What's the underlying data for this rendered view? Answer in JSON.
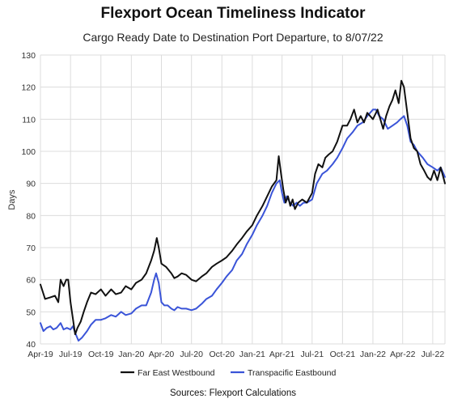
{
  "chart_data": {
    "type": "line",
    "title": "Flexport Ocean Timeliness Indicator",
    "subtitle": "Cargo Ready Date to Destination Port Departure, to 8/07/22",
    "ylabel": "Days",
    "xlabel": "",
    "source": "Sources: Flexport Calculations",
    "ylim": [
      40,
      130
    ],
    "yticks": [
      40,
      50,
      60,
      70,
      80,
      90,
      100,
      110,
      120,
      130
    ],
    "xlim": [
      "2019-04-01",
      "2022-08-07"
    ],
    "xticks": [
      {
        "date": "2019-04-01",
        "label": "Apr-19"
      },
      {
        "date": "2019-07-01",
        "label": "Jul-19"
      },
      {
        "date": "2019-10-01",
        "label": "Oct-19"
      },
      {
        "date": "2020-01-01",
        "label": "Jan-20"
      },
      {
        "date": "2020-04-01",
        "label": "Apr-20"
      },
      {
        "date": "2020-07-01",
        "label": "Jul-20"
      },
      {
        "date": "2020-10-01",
        "label": "Oct-20"
      },
      {
        "date": "2021-01-01",
        "label": "Jan-21"
      },
      {
        "date": "2021-04-01",
        "label": "Apr-21"
      },
      {
        "date": "2021-07-01",
        "label": "Jul-21"
      },
      {
        "date": "2021-10-01",
        "label": "Oct-21"
      },
      {
        "date": "2022-01-01",
        "label": "Jan-22"
      },
      {
        "date": "2022-04-01",
        "label": "Apr-22"
      },
      {
        "date": "2022-07-01",
        "label": "Jul-22"
      }
    ],
    "grid": true,
    "legend_position": "bottom",
    "series": [
      {
        "name": "Far East Westbound",
        "color": "#111111",
        "points": [
          [
            "2019-04-01",
            58.5
          ],
          [
            "2019-04-15",
            54
          ],
          [
            "2019-05-01",
            54.5
          ],
          [
            "2019-05-15",
            55
          ],
          [
            "2019-05-25",
            53
          ],
          [
            "2019-06-01",
            60
          ],
          [
            "2019-06-10",
            58
          ],
          [
            "2019-06-18",
            60
          ],
          [
            "2019-06-24",
            60
          ],
          [
            "2019-07-01",
            53
          ],
          [
            "2019-07-08",
            48
          ],
          [
            "2019-07-15",
            43
          ],
          [
            "2019-07-22",
            45
          ],
          [
            "2019-08-01",
            47
          ],
          [
            "2019-08-10",
            50
          ],
          [
            "2019-08-20",
            53
          ],
          [
            "2019-09-01",
            56
          ],
          [
            "2019-09-15",
            55.5
          ],
          [
            "2019-10-01",
            57
          ],
          [
            "2019-10-15",
            55
          ],
          [
            "2019-11-01",
            57
          ],
          [
            "2019-11-15",
            55.5
          ],
          [
            "2019-12-01",
            56
          ],
          [
            "2019-12-15",
            58
          ],
          [
            "2020-01-01",
            57
          ],
          [
            "2020-01-15",
            59
          ],
          [
            "2020-02-01",
            60
          ],
          [
            "2020-02-15",
            62
          ],
          [
            "2020-03-01",
            66
          ],
          [
            "2020-03-10",
            69
          ],
          [
            "2020-03-18",
            73
          ],
          [
            "2020-03-24",
            70
          ],
          [
            "2020-04-01",
            65
          ],
          [
            "2020-04-15",
            64
          ],
          [
            "2020-05-01",
            62
          ],
          [
            "2020-05-10",
            60.5
          ],
          [
            "2020-05-20",
            61
          ],
          [
            "2020-06-01",
            62
          ],
          [
            "2020-06-15",
            61.5
          ],
          [
            "2020-07-01",
            60
          ],
          [
            "2020-07-15",
            59.5
          ],
          [
            "2020-08-01",
            61
          ],
          [
            "2020-08-15",
            62
          ],
          [
            "2020-09-01",
            64
          ],
          [
            "2020-09-15",
            65
          ],
          [
            "2020-10-01",
            66
          ],
          [
            "2020-10-15",
            67
          ],
          [
            "2020-11-01",
            69
          ],
          [
            "2020-11-15",
            71
          ],
          [
            "2020-12-01",
            73
          ],
          [
            "2020-12-15",
            75
          ],
          [
            "2021-01-01",
            77
          ],
          [
            "2021-01-15",
            80
          ],
          [
            "2021-02-01",
            83
          ],
          [
            "2021-02-15",
            86
          ],
          [
            "2021-03-01",
            89
          ],
          [
            "2021-03-15",
            91
          ],
          [
            "2021-03-22",
            98.5
          ],
          [
            "2021-03-29",
            93
          ],
          [
            "2021-04-05",
            88
          ],
          [
            "2021-04-12",
            84
          ],
          [
            "2021-04-19",
            86
          ],
          [
            "2021-04-26",
            83
          ],
          [
            "2021-05-03",
            85
          ],
          [
            "2021-05-10",
            82
          ],
          [
            "2021-05-20",
            84
          ],
          [
            "2021-06-01",
            85
          ],
          [
            "2021-06-15",
            84
          ],
          [
            "2021-07-01",
            87
          ],
          [
            "2021-07-10",
            93
          ],
          [
            "2021-07-20",
            96
          ],
          [
            "2021-08-01",
            95
          ],
          [
            "2021-08-10",
            98
          ],
          [
            "2021-08-20",
            99
          ],
          [
            "2021-09-01",
            100
          ],
          [
            "2021-09-15",
            103
          ],
          [
            "2021-10-01",
            108
          ],
          [
            "2021-10-15",
            108
          ],
          [
            "2021-10-25",
            110
          ],
          [
            "2021-11-05",
            113
          ],
          [
            "2021-11-15",
            109
          ],
          [
            "2021-11-25",
            111
          ],
          [
            "2021-12-05",
            109
          ],
          [
            "2021-12-15",
            112
          ],
          [
            "2022-01-01",
            110
          ],
          [
            "2022-01-15",
            113
          ],
          [
            "2022-02-01",
            107
          ],
          [
            "2022-02-10",
            111
          ],
          [
            "2022-02-20",
            114
          ],
          [
            "2022-03-01",
            116
          ],
          [
            "2022-03-10",
            119
          ],
          [
            "2022-03-20",
            115
          ],
          [
            "2022-03-28",
            122
          ],
          [
            "2022-04-05",
            120
          ],
          [
            "2022-04-15",
            112
          ],
          [
            "2022-04-25",
            104
          ],
          [
            "2022-05-05",
            101
          ],
          [
            "2022-05-15",
            100
          ],
          [
            "2022-05-25",
            96
          ],
          [
            "2022-06-05",
            94
          ],
          [
            "2022-06-15",
            92
          ],
          [
            "2022-06-25",
            91
          ],
          [
            "2022-07-05",
            94
          ],
          [
            "2022-07-15",
            91
          ],
          [
            "2022-07-25",
            95
          ],
          [
            "2022-08-07",
            90
          ]
        ]
      },
      {
        "name": "Transpacific Eastbound",
        "color": "#3a54d8",
        "points": [
          [
            "2019-04-01",
            46.5
          ],
          [
            "2019-04-10",
            44
          ],
          [
            "2019-04-20",
            45
          ],
          [
            "2019-05-01",
            45.5
          ],
          [
            "2019-05-10",
            44.5
          ],
          [
            "2019-05-20",
            45
          ],
          [
            "2019-06-01",
            46.5
          ],
          [
            "2019-06-10",
            44.5
          ],
          [
            "2019-06-20",
            45
          ],
          [
            "2019-07-01",
            44.5
          ],
          [
            "2019-07-08",
            45.5
          ],
          [
            "2019-07-15",
            43.5
          ],
          [
            "2019-07-25",
            41
          ],
          [
            "2019-08-05",
            42
          ],
          [
            "2019-08-20",
            44
          ],
          [
            "2019-09-01",
            46
          ],
          [
            "2019-09-15",
            47.5
          ],
          [
            "2019-10-01",
            47.5
          ],
          [
            "2019-10-15",
            48
          ],
          [
            "2019-11-01",
            49
          ],
          [
            "2019-11-15",
            48.5
          ],
          [
            "2019-12-01",
            50
          ],
          [
            "2019-12-15",
            49
          ],
          [
            "2020-01-01",
            49.5
          ],
          [
            "2020-01-15",
            51
          ],
          [
            "2020-02-01",
            52
          ],
          [
            "2020-02-15",
            52
          ],
          [
            "2020-03-01",
            56
          ],
          [
            "2020-03-10",
            60
          ],
          [
            "2020-03-16",
            62
          ],
          [
            "2020-03-24",
            59
          ],
          [
            "2020-04-01",
            53
          ],
          [
            "2020-04-10",
            52
          ],
          [
            "2020-04-20",
            52
          ],
          [
            "2020-05-01",
            51
          ],
          [
            "2020-05-10",
            50.5
          ],
          [
            "2020-05-20",
            51.5
          ],
          [
            "2020-06-01",
            51
          ],
          [
            "2020-06-15",
            51
          ],
          [
            "2020-07-01",
            50.5
          ],
          [
            "2020-07-15",
            51
          ],
          [
            "2020-08-01",
            52.5
          ],
          [
            "2020-08-15",
            54
          ],
          [
            "2020-09-01",
            55
          ],
          [
            "2020-09-15",
            57
          ],
          [
            "2020-10-01",
            59
          ],
          [
            "2020-10-15",
            61
          ],
          [
            "2020-11-01",
            63
          ],
          [
            "2020-11-15",
            66
          ],
          [
            "2020-12-01",
            68
          ],
          [
            "2020-12-15",
            71
          ],
          [
            "2021-01-01",
            74
          ],
          [
            "2021-01-15",
            77
          ],
          [
            "2021-02-01",
            80
          ],
          [
            "2021-02-15",
            83
          ],
          [
            "2021-03-01",
            87
          ],
          [
            "2021-03-15",
            90
          ],
          [
            "2021-03-25",
            91
          ],
          [
            "2021-04-01",
            87
          ],
          [
            "2021-04-08",
            84
          ],
          [
            "2021-04-15",
            86
          ],
          [
            "2021-04-25",
            84
          ],
          [
            "2021-05-05",
            83
          ],
          [
            "2021-05-15",
            84
          ],
          [
            "2021-05-25",
            83
          ],
          [
            "2021-06-05",
            84
          ],
          [
            "2021-06-15",
            84
          ],
          [
            "2021-07-01",
            85
          ],
          [
            "2021-07-15",
            90
          ],
          [
            "2021-08-01",
            93
          ],
          [
            "2021-08-15",
            94
          ],
          [
            "2021-09-01",
            96
          ],
          [
            "2021-09-15",
            98
          ],
          [
            "2021-10-01",
            101
          ],
          [
            "2021-10-15",
            104
          ],
          [
            "2021-11-01",
            106
          ],
          [
            "2021-11-15",
            108
          ],
          [
            "2021-12-01",
            109
          ],
          [
            "2021-12-15",
            111
          ],
          [
            "2022-01-01",
            113
          ],
          [
            "2022-01-10",
            113
          ],
          [
            "2022-01-20",
            111
          ],
          [
            "2022-02-01",
            110
          ],
          [
            "2022-02-15",
            107
          ],
          [
            "2022-03-01",
            108
          ],
          [
            "2022-03-15",
            109
          ],
          [
            "2022-03-25",
            110
          ],
          [
            "2022-04-05",
            111
          ],
          [
            "2022-04-15",
            108
          ],
          [
            "2022-04-25",
            103
          ],
          [
            "2022-05-05",
            102
          ],
          [
            "2022-05-15",
            100
          ],
          [
            "2022-06-01",
            98
          ],
          [
            "2022-06-15",
            96
          ],
          [
            "2022-07-01",
            95
          ],
          [
            "2022-07-15",
            94
          ],
          [
            "2022-07-25",
            95
          ],
          [
            "2022-08-07",
            92
          ]
        ]
      }
    ]
  }
}
